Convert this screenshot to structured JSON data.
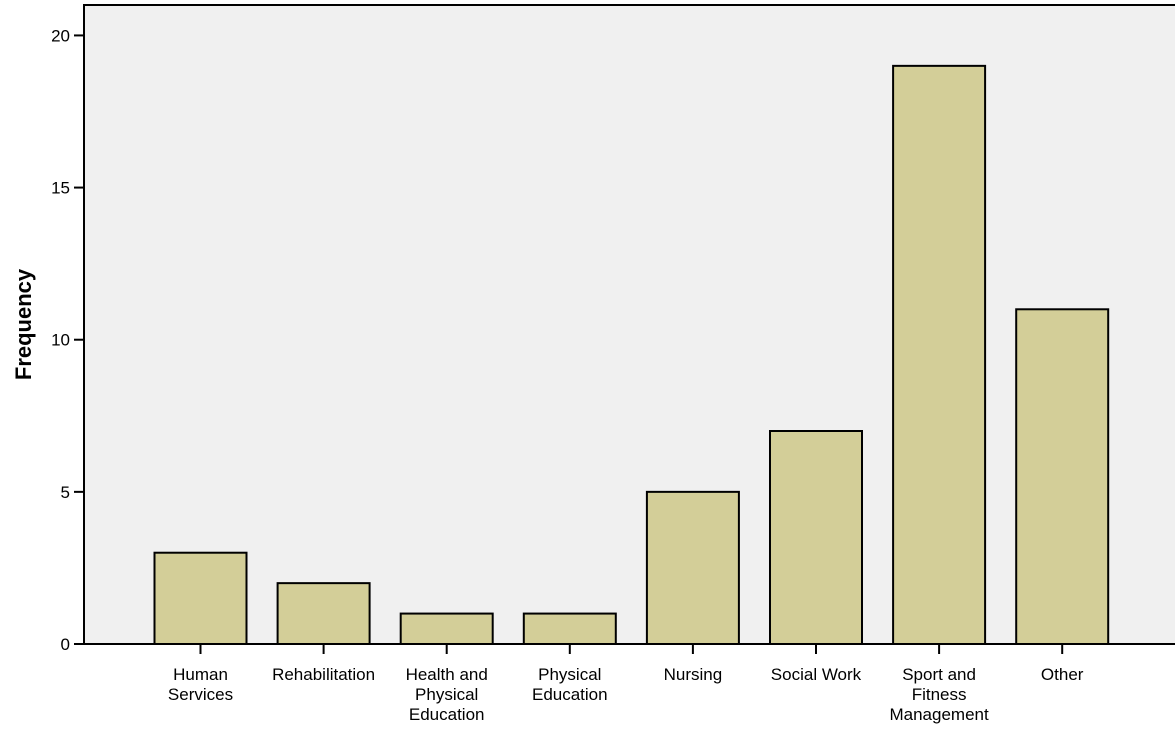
{
  "chart_data": {
    "type": "bar",
    "title": "",
    "xlabel": "",
    "ylabel": "Frequency",
    "categories": [
      [
        "Human",
        "Services"
      ],
      [
        "Rehabilitation"
      ],
      [
        "Health and",
        "Physical",
        "Education"
      ],
      [
        "Physical",
        "Education"
      ],
      [
        "Nursing"
      ],
      [
        "Social Work"
      ],
      [
        "Sport and",
        "Fitness",
        "Management"
      ],
      [
        "Other"
      ]
    ],
    "values": [
      3,
      2,
      1,
      1,
      5,
      7,
      19,
      11
    ],
    "ylim": [
      0,
      21
    ],
    "yticks": [
      0,
      5,
      10,
      15,
      20
    ],
    "grid": false,
    "colors": {
      "plot_background": "#f0f0f0",
      "bar_fill": "#d3ce98",
      "bar_stroke": "#000000"
    }
  }
}
